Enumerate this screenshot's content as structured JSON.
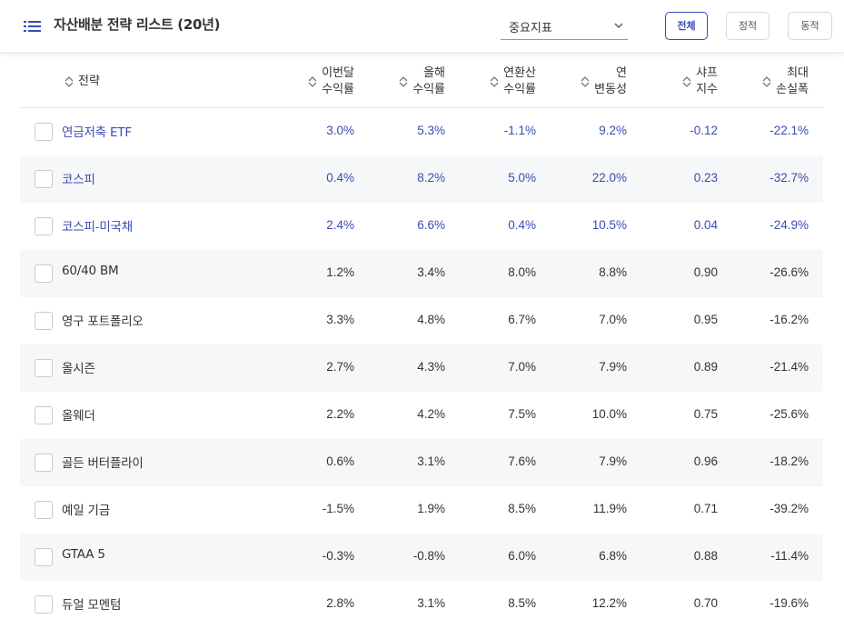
{
  "header": {
    "title": "자산배분 전략 리스트 (20년)",
    "metric_select": "중요지표",
    "buttons": {
      "all": "전체",
      "static": "정적",
      "dynamic": "동적"
    }
  },
  "columns": {
    "strategy": "전략",
    "monthly_return": [
      "이번달",
      "수익률"
    ],
    "ytd_return": [
      "올해",
      "수익률"
    ],
    "cagr": [
      "연환산",
      "수익률"
    ],
    "volatility": [
      "연",
      "변동성"
    ],
    "sharpe": [
      "샤프",
      "지수"
    ],
    "mdd": [
      "최대",
      "손실폭"
    ]
  },
  "accent_color": "#3a4bb5",
  "rows": [
    {
      "name": "연금저축 ETF",
      "values": [
        "3.0%",
        "5.3%",
        "-1.1%",
        "9.2%",
        "-0.12",
        "-22.1%"
      ],
      "highlight": true
    },
    {
      "name": "코스피",
      "values": [
        "0.4%",
        "8.2%",
        "5.0%",
        "22.0%",
        "0.23",
        "-32.7%"
      ],
      "highlight": true
    },
    {
      "name": "코스피-미국채",
      "values": [
        "2.4%",
        "6.6%",
        "0.4%",
        "10.5%",
        "0.04",
        "-24.9%"
      ],
      "highlight": true
    },
    {
      "name": "60/40 BM",
      "values": [
        "1.2%",
        "3.4%",
        "8.0%",
        "8.8%",
        "0.90",
        "-26.6%"
      ],
      "highlight": false
    },
    {
      "name": "영구 포트폴리오",
      "values": [
        "3.3%",
        "4.8%",
        "6.7%",
        "7.0%",
        "0.95",
        "-16.2%"
      ],
      "highlight": false
    },
    {
      "name": "올시즌",
      "values": [
        "2.7%",
        "4.3%",
        "7.0%",
        "7.9%",
        "0.89",
        "-21.4%"
      ],
      "highlight": false
    },
    {
      "name": "올웨더",
      "values": [
        "2.2%",
        "4.2%",
        "7.5%",
        "10.0%",
        "0.75",
        "-25.6%"
      ],
      "highlight": false
    },
    {
      "name": "골든 버터플라이",
      "values": [
        "0.6%",
        "3.1%",
        "7.6%",
        "7.9%",
        "0.96",
        "-18.2%"
      ],
      "highlight": false
    },
    {
      "name": "예일 기금",
      "values": [
        "-1.5%",
        "1.9%",
        "8.5%",
        "11.9%",
        "0.71",
        "-39.2%"
      ],
      "highlight": false
    },
    {
      "name": "GTAA 5",
      "values": [
        "-0.3%",
        "-0.8%",
        "6.0%",
        "6.8%",
        "0.88",
        "-11.4%"
      ],
      "highlight": false
    },
    {
      "name": "듀얼 모멘텀",
      "values": [
        "2.8%",
        "3.1%",
        "8.5%",
        "12.2%",
        "0.70",
        "-19.6%"
      ],
      "highlight": false
    }
  ]
}
